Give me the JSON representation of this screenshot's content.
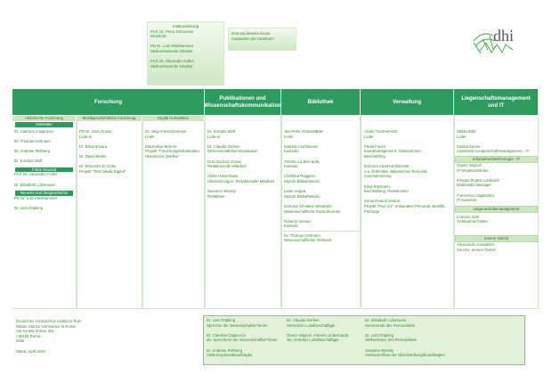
{
  "leadership": {
    "title": "Institutsleitung",
    "people": [
      {
        "name": "Prof. Dr. Petra Terhoeven",
        "role": "Direktorin"
      },
      {
        "name": "PD Dr. Lutz Klinkhammer",
        "role": "Stellvertretender Direktor"
      },
      {
        "name": "Prof. Dr. Alexander Koller",
        "role": "Stellvertretender Direktor"
      }
    ]
  },
  "assistant": {
    "name": "Dott.ssa Monika Kruse",
    "role": "Assistentin der Direktorin"
  },
  "logo": {
    "text": "dhi"
  },
  "colors": {
    "header": "#2e9a5f",
    "light": "#cfe6c3",
    "text": "#3a8a2e"
  },
  "departments": {
    "forschung": {
      "title": "Forschung",
      "historisch": {
        "title": "Historische Forschung",
        "mittelalter": {
          "title": "Mittelalter",
          "people": [
            "Dr. Caterina Cappuccio",
            "Dr. Thomas Hofmann",
            "Dr. Andreas Rehberg",
            "Dr. Kordula Wolf"
          ]
        },
        "fruehe": {
          "title": "Frühe Neuzeit",
          "people": [
            "Prof. Dr. Alexander Koller",
            "Dr. Elisabeth Lobenwein"
          ]
        },
        "neueste": {
          "title": "Neueste und Zeitgeschichte",
          "people": [
            "PD Dr. Lutz Klinkhammer",
            "Dr. Lars Döpking"
          ]
        }
      },
      "musik": {
        "title": "Musikgeschichtliche Forschung",
        "people": [
          {
            "name": "PD Dr. Vera Grund",
            "role": "Leiterin"
          },
          {
            "name": "Dr. Elisa Novara",
            "role": ""
          },
          {
            "name": "Dr. David Merlin",
            "role": ""
          },
          {
            "name": "Dr. Eleonora Di Cintio",
            "role": "Projekt \"Tanz.Musik.Digital\""
          }
        ]
      },
      "digital": {
        "title": "Digital Humanities",
        "people": [
          {
            "name": "Dr. Jörg Hörnschemeyer",
            "role": "Leiter"
          },
          {
            "name": "Maximilian Berens",
            "role": "Projekt \"Forschungsinfrastruktur",
            "role2": "Historische Quellen\""
          }
        ]
      }
    },
    "publikationen": {
      "title": "Publikationen und Wissenschaftskommunikation",
      "people": [
        {
          "name": "Dr. Kordula Wolf",
          "role": "Leiterin"
        },
        {
          "name": "Dr. Claudia Gerken",
          "role": "Wissenschaftskommunikation"
        },
        {
          "name": "Dott.ssa Eva Grassi",
          "role": "Redaktionelle Mitarbeit"
        },
        {
          "name": "Ulrike Hekermans",
          "role": "Übersetzungen, Redaktionelle Mitarbeit"
        },
        {
          "name": "Susanne Wesely",
          "role": "Redaktion"
        }
      ]
    },
    "bibliothek": {
      "title": "Bibliothek",
      "people": [
        {
          "name": "Jan-Peter Grünewälder",
          "role": "Leiter"
        },
        {
          "name": "Martina Confalonieri",
          "role": "Kustodin"
        },
        {
          "name": "Antonio La Bernarda",
          "role": "Kustode"
        },
        {
          "name": "Christina Ruggiero",
          "role": "Diplom-Bibliothekarin"
        },
        {
          "name": "Liane Soppa",
          "role": "Diplom-Bibliothekarin"
        },
        {
          "name": "Dott.ssa Christine Streubühr",
          "role": "Wissenschaftliche Fachreferentin"
        },
        {
          "name": "Roberto Versari",
          "role": "Kustode"
        }
      ],
      "extra": {
        "name": "Dr. Thomas Hofmann",
        "role": "Wissenschaftlicher Referent"
      }
    },
    "verwaltung": {
      "title": "Verwaltung",
      "people": [
        {
          "name": "André Tummernicht",
          "role": "Leiter"
        },
        {
          "name": "Paola Fiorini",
          "role": "Eventmanagement, Gästezimmer,",
          "role2": "Beschaffung"
        },
        {
          "name": "Dott.ssa Caterina Mazzetti",
          "role": "u.a. Drittmittel, italienisches Personal,",
          "role2": "Inventarisierung"
        },
        {
          "name": "Elisa Ritzmann",
          "role": "Buchhaltung, Reisekosten"
        },
        {
          "name": "Sonia Romoli Venturi",
          "role": "Projekt \"Pius XII\", entsandtes Personal, Beihilfe,",
          "role2": "Fürsorge"
        }
      ]
    },
    "liegenschaft": {
      "title": "Liegenschaftsmanagement und IT",
      "people": [
        {
          "name": "Niklas Bolli",
          "role": "Leiter"
        },
        {
          "name": "Saskia Karow",
          "role": "Assistentin Liegenschaftsmanagement - IT"
        }
      ],
      "it": {
        "title": "Informationstechnologie - IT",
        "people": [
          {
            "name": "Gianni Vagnoli",
            "role": "IT-Verantwortlicher"
          },
          {
            "name": "Kristian Bojack Lombardi",
            "role": "Multimedia Manager"
          },
          {
            "name": "Francesco Gagliardini",
            "role": "IT-Assistent"
          }
        ]
      },
      "lm": {
        "title": "Liegenschaftsmanagement",
        "people": [
          {
            "name": "Lorenzo Giuli",
            "role": "Gebäudetechniker"
          }
        ]
      },
      "innerer": {
        "title": "Innerer Dienst",
        "people": [
          {
            "name": "Alessandro Costantini",
            "role": "Service, Innerer Dienst"
          }
        ]
      }
    }
  },
  "address": {
    "lines": [
      "Deutsches Historisches Institut in Rom",
      "Istituto Storico Germanico di Roma",
      "Via Aurelia Antica, 391",
      "I-00165 Roma",
      "Italia"
    ],
    "stand": "Stand: April 2026"
  },
  "footer": [
    [
      {
        "name": "Dr. Lars Döpking",
        "role": "Sprecher der Wissenschaftler*innen"
      },
      {
        "name": "Dr. Caterina Cappuccio",
        "role": "stv. Sprecherin der Wissenschaftler*innen"
      },
      {
        "name": "Dr. Andreas Rehberg",
        "role": "Antikorruptionsbeauftragter"
      }
    ],
    [
      {
        "name": "Dr. Claudia Gerken",
        "role": "Vertreterin Lokalbeschäftigte"
      },
      {
        "name": "Gianni Vagnoli, Antonio La Bernarda",
        "role": "stv. Vertreter Lokalbeschäftigte"
      }
    ],
    [
      {
        "name": "Dr. Elisabeth Lobenwein",
        "role": "Vorsitzende des Personalrats"
      },
      {
        "name": "Dr. Lars Döpking",
        "role": "Stellvertreter des Personalrats"
      },
      {
        "name": "Susanne Wesely",
        "role": "Vertrauensfrau der Gleichstellungsbeauftragten"
      }
    ]
  ]
}
